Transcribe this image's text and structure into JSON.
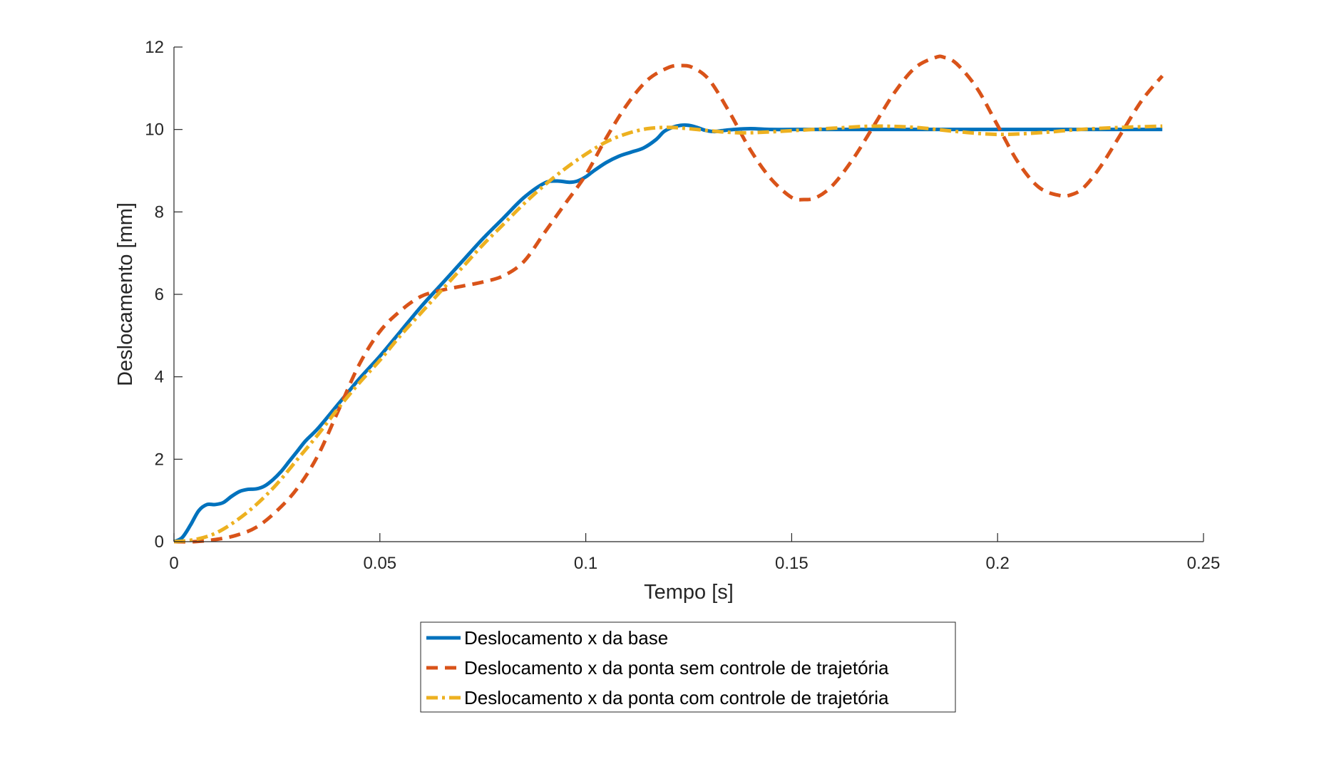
{
  "chart_data": {
    "type": "line",
    "title": "",
    "xlabel": "Tempo [s]",
    "ylabel": "Deslocamento [mm]",
    "xlim": [
      0,
      0.25
    ],
    "ylim": [
      0,
      12
    ],
    "xticks": [
      0,
      0.05,
      0.1,
      0.15,
      0.2,
      0.25
    ],
    "xtick_labels": [
      "0",
      "0.05",
      "0.1",
      "0.15",
      "0.2",
      "0.25"
    ],
    "yticks": [
      0,
      2,
      4,
      6,
      8,
      10,
      12
    ],
    "ytick_labels": [
      "0",
      "2",
      "4",
      "6",
      "8",
      "10",
      "12"
    ],
    "grid": false,
    "legend_position": "bottom-center",
    "series": [
      {
        "name": "Deslocamento x da base",
        "color": "#0072BD",
        "style": "solid",
        "x": [
          0,
          0.002,
          0.004,
          0.006,
          0.008,
          0.01,
          0.012,
          0.014,
          0.016,
          0.018,
          0.02,
          0.022,
          0.024,
          0.026,
          0.028,
          0.03,
          0.032,
          0.035,
          0.04,
          0.045,
          0.05,
          0.055,
          0.06,
          0.065,
          0.07,
          0.075,
          0.08,
          0.085,
          0.09,
          0.093,
          0.096,
          0.098,
          0.1,
          0.102,
          0.105,
          0.108,
          0.111,
          0.114,
          0.117,
          0.119,
          0.121,
          0.123,
          0.125,
          0.127,
          0.129,
          0.131,
          0.133,
          0.136,
          0.14,
          0.145,
          0.15,
          0.16,
          0.17,
          0.18,
          0.19,
          0.2,
          0.21,
          0.22,
          0.23,
          0.24
        ],
        "y": [
          0,
          0.1,
          0.4,
          0.75,
          0.9,
          0.9,
          0.95,
          1.1,
          1.22,
          1.27,
          1.28,
          1.35,
          1.5,
          1.7,
          1.95,
          2.2,
          2.45,
          2.75,
          3.35,
          3.95,
          4.5,
          5.1,
          5.7,
          6.25,
          6.8,
          7.35,
          7.85,
          8.35,
          8.7,
          8.75,
          8.72,
          8.75,
          8.85,
          9.0,
          9.2,
          9.35,
          9.45,
          9.55,
          9.75,
          9.95,
          10.05,
          10.1,
          10.1,
          10.05,
          9.98,
          9.95,
          9.97,
          10.0,
          10.02,
          10.0,
          10.0,
          10.0,
          10.0,
          10.0,
          10.0,
          10.0,
          10.0,
          10.0,
          10.0,
          10.0
        ]
      },
      {
        "name": "Deslocamento x da ponta sem controle de trajetória",
        "color": "#D95319",
        "style": "dashed",
        "x": [
          0,
          0.005,
          0.01,
          0.015,
          0.02,
          0.025,
          0.03,
          0.035,
          0.04,
          0.045,
          0.05,
          0.055,
          0.06,
          0.065,
          0.07,
          0.075,
          0.08,
          0.085,
          0.09,
          0.095,
          0.1,
          0.105,
          0.11,
          0.115,
          0.12,
          0.123,
          0.126,
          0.13,
          0.135,
          0.14,
          0.145,
          0.15,
          0.153,
          0.156,
          0.16,
          0.165,
          0.17,
          0.175,
          0.18,
          0.185,
          0.187,
          0.19,
          0.195,
          0.2,
          0.205,
          0.21,
          0.215,
          0.218,
          0.221,
          0.225,
          0.23,
          0.235,
          0.24
        ],
        "y": [
          0,
          0.0,
          0.05,
          0.15,
          0.35,
          0.75,
          1.3,
          2.1,
          3.2,
          4.3,
          5.1,
          5.6,
          5.95,
          6.1,
          6.2,
          6.3,
          6.45,
          6.8,
          7.5,
          8.2,
          8.9,
          9.8,
          10.6,
          11.2,
          11.5,
          11.55,
          11.5,
          11.2,
          10.4,
          9.5,
          8.8,
          8.35,
          8.3,
          8.35,
          8.65,
          9.3,
          10.1,
          10.9,
          11.5,
          11.75,
          11.75,
          11.6,
          11.0,
          10.1,
          9.2,
          8.6,
          8.4,
          8.42,
          8.6,
          9.1,
          9.9,
          10.7,
          11.3
        ]
      },
      {
        "name": "Deslocamento x da ponta com controle de trajetória",
        "color": "#EDB120",
        "style": "dashdot",
        "x": [
          0,
          0.005,
          0.01,
          0.015,
          0.02,
          0.025,
          0.03,
          0.035,
          0.04,
          0.045,
          0.05,
          0.055,
          0.06,
          0.065,
          0.07,
          0.075,
          0.08,
          0.085,
          0.09,
          0.095,
          0.1,
          0.105,
          0.11,
          0.115,
          0.12,
          0.125,
          0.13,
          0.135,
          0.14,
          0.15,
          0.16,
          0.17,
          0.18,
          0.19,
          0.2,
          0.21,
          0.22,
          0.23,
          0.24
        ],
        "y": [
          0,
          0.05,
          0.2,
          0.5,
          0.9,
          1.4,
          2.0,
          2.6,
          3.25,
          3.85,
          4.4,
          5.0,
          5.55,
          6.1,
          6.65,
          7.2,
          7.7,
          8.2,
          8.65,
          9.05,
          9.4,
          9.7,
          9.9,
          10.02,
          10.05,
          10.02,
          9.97,
          9.93,
          9.92,
          9.97,
          10.03,
          10.08,
          10.05,
          9.95,
          9.88,
          9.92,
          10.0,
          10.05,
          10.08
        ]
      }
    ]
  }
}
